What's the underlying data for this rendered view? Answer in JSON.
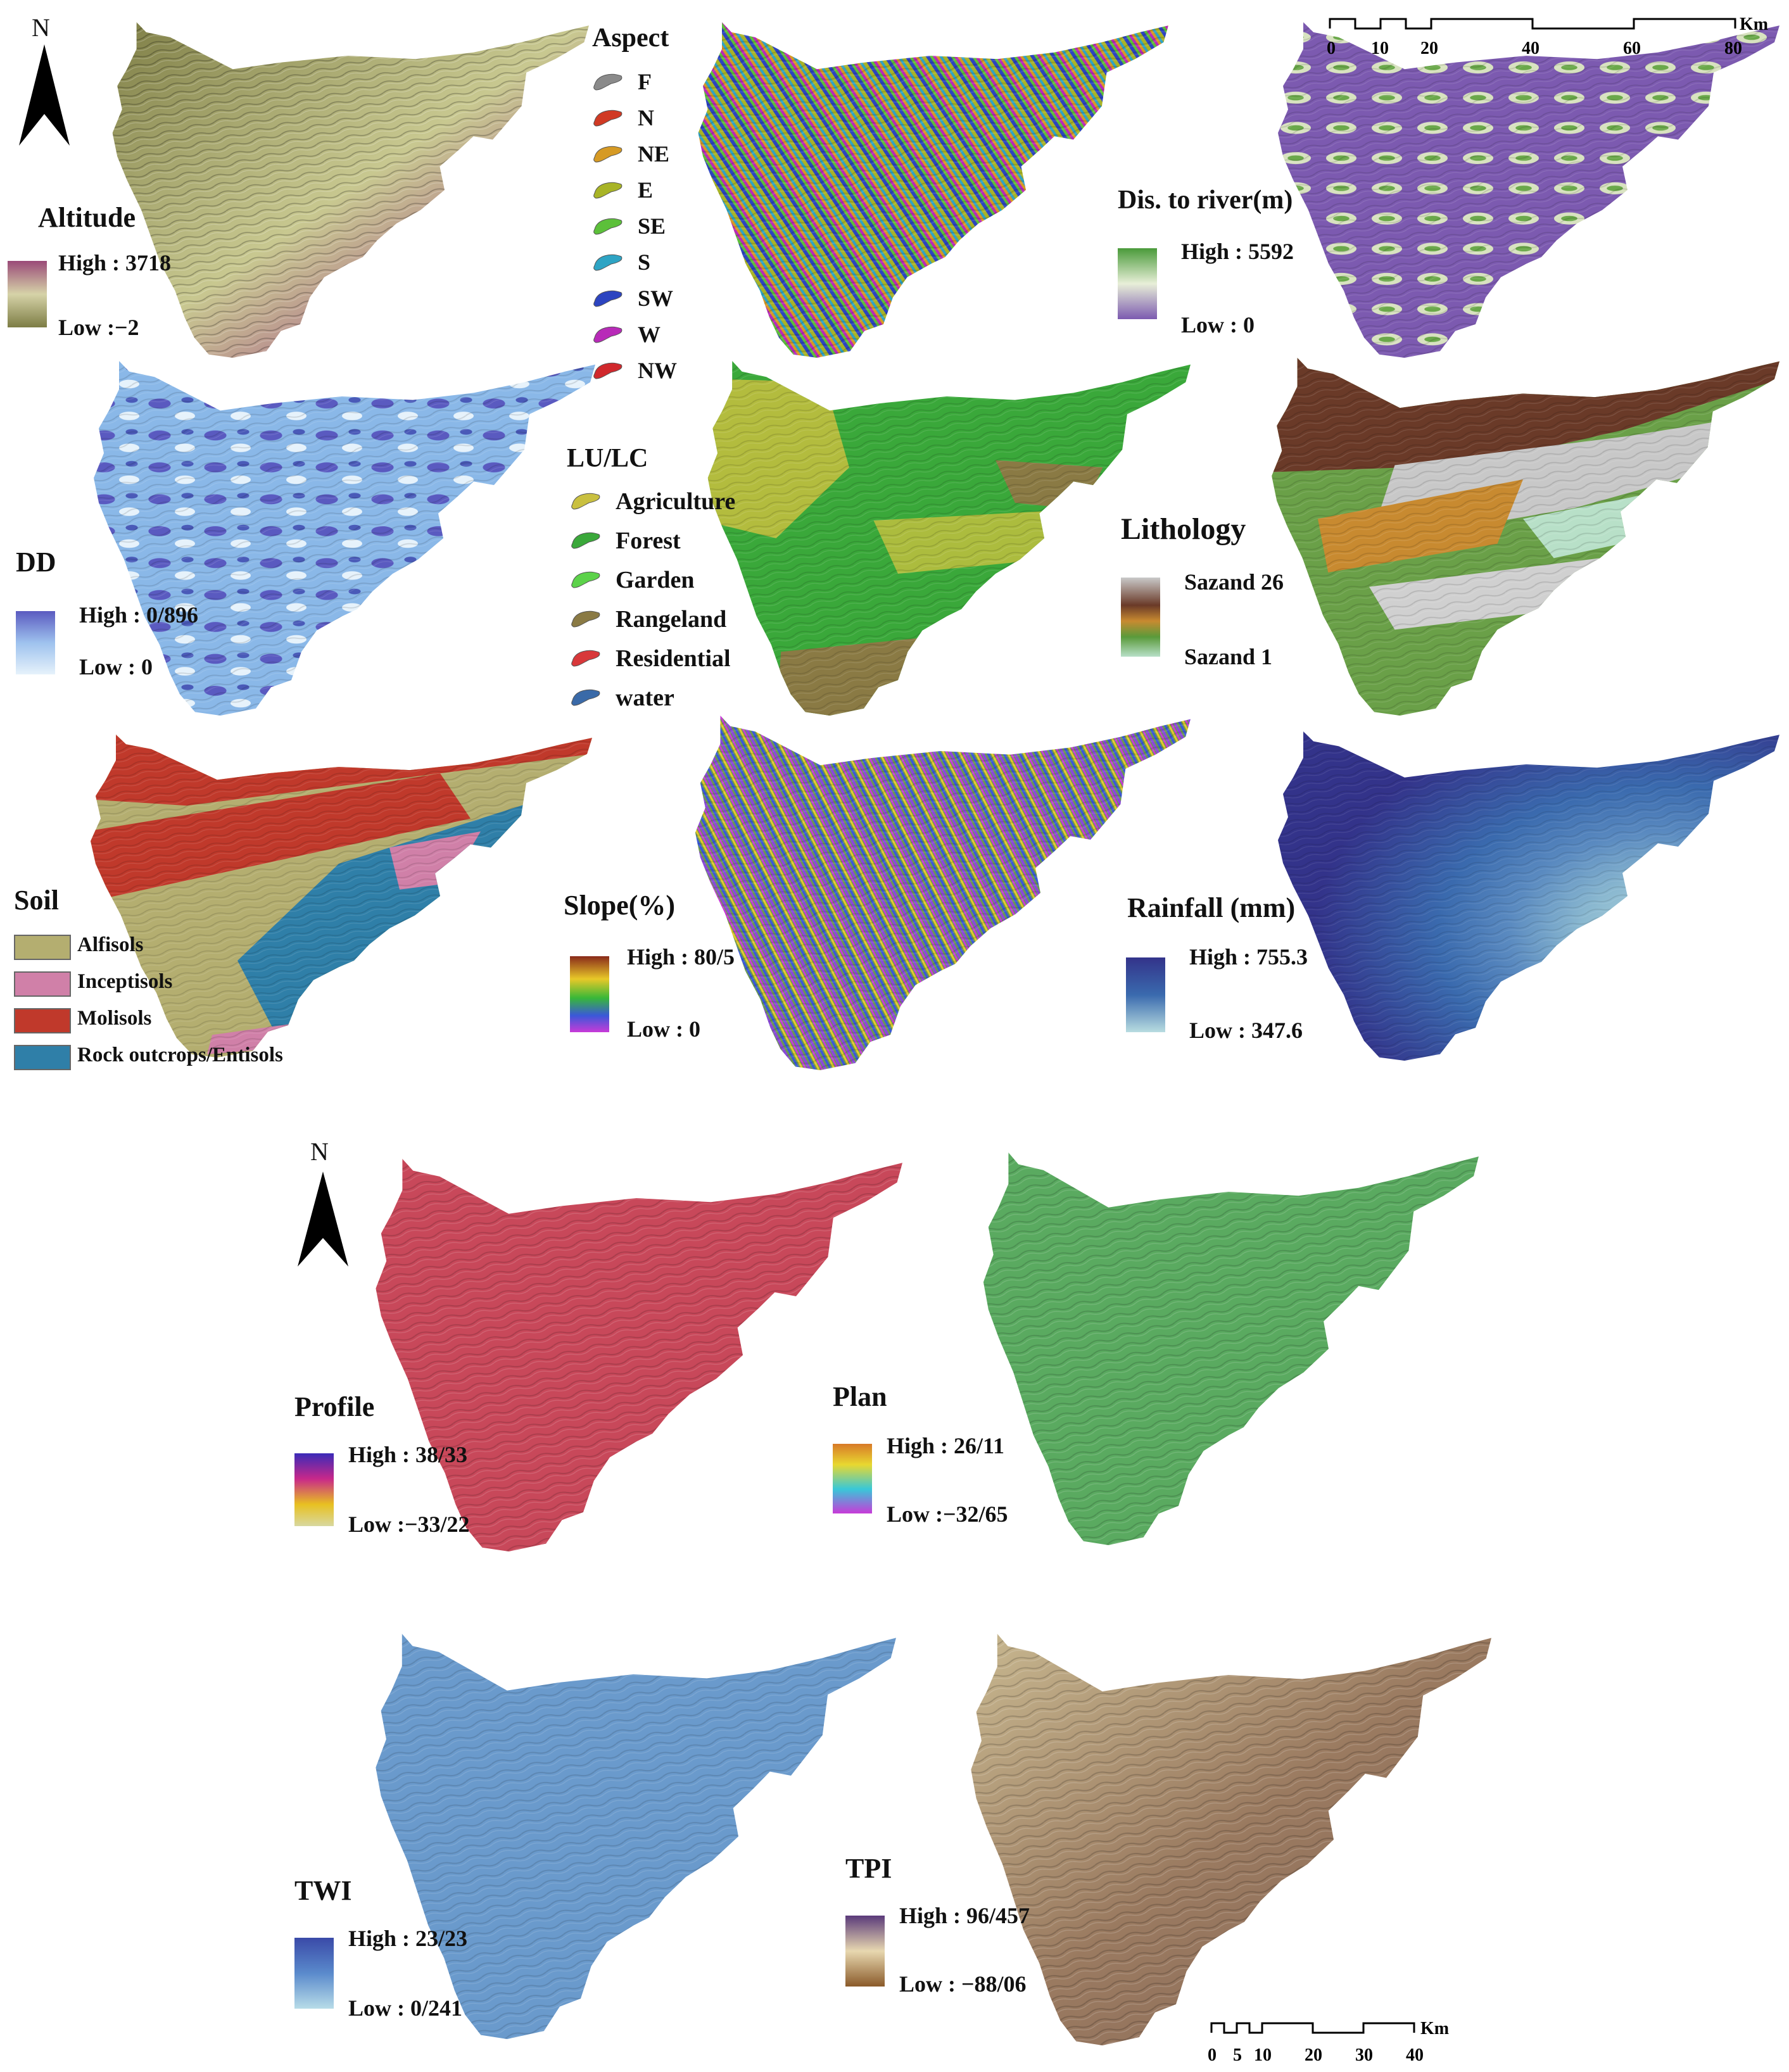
{
  "north_label": "N",
  "scale_top": {
    "ticks": [
      "0",
      "10",
      "20",
      "40",
      "60",
      "80"
    ],
    "unit": "Km"
  },
  "scale_bottom": {
    "ticks": [
      "0",
      "5",
      "10",
      "20",
      "30",
      "40"
    ],
    "unit": "Km"
  },
  "panels": {
    "altitude": {
      "title": "Altitude",
      "high": "High : 3718",
      "low": "Low :−2",
      "colors": [
        "#9a4a78",
        "#d6d3a8",
        "#7d7d45"
      ]
    },
    "aspect": {
      "title": "Aspect",
      "classes": [
        {
          "label": "F",
          "color": "#8a8a8a"
        },
        {
          "label": "N",
          "color": "#d03a24"
        },
        {
          "label": "NE",
          "color": "#d69a24"
        },
        {
          "label": "E",
          "color": "#a8b426"
        },
        {
          "label": "SE",
          "color": "#5cc03a"
        },
        {
          "label": "S",
          "color": "#2ea4c4"
        },
        {
          "label": "SW",
          "color": "#2c44c0"
        },
        {
          "label": "W",
          "color": "#b82ab8"
        },
        {
          "label": "NW",
          "color": "#d0282c"
        }
      ]
    },
    "dist_river": {
      "title": "Dis. to river(m)",
      "high": "High : 5592",
      "low": "Low : 0",
      "colors": [
        "#4a9a3a",
        "#e8efd8",
        "#7c5ab0"
      ]
    },
    "dd": {
      "title": "DD",
      "high": "High : 0/896",
      "low": "Low : 0",
      "colors": [
        "#5a5ac0",
        "#9ec2ee",
        "#e6f2fb"
      ]
    },
    "lulc": {
      "title": "LU/LC",
      "classes": [
        {
          "label": "Agriculture",
          "color": "#c9c040"
        },
        {
          "label": "Forest",
          "color": "#3aa83a"
        },
        {
          "label": "Garden",
          "color": "#5cd24a"
        },
        {
          "label": "Rangeland",
          "color": "#8a7a44"
        },
        {
          "label": "Residential",
          "color": "#d8383a"
        },
        {
          "label": "water",
          "color": "#3a6aa8"
        }
      ]
    },
    "lithology": {
      "title": "Lithology",
      "high": "Sazand 26",
      "low": "Sazand 1",
      "colors": [
        "#c9c9c9",
        "#6a3a28",
        "#c88a30",
        "#5a9a3a",
        "#b8e0c8"
      ]
    },
    "soil": {
      "title": "Soil",
      "classes": [
        {
          "label": "Alfisols",
          "color": "#b4ae70"
        },
        {
          "label": "Inceptisols",
          "color": "#d080a8"
        },
        {
          "label": "Molisols",
          "color": "#c0392b"
        },
        {
          "label": "Rock outcrops/Entisols",
          "color": "#2f7fa8"
        }
      ]
    },
    "slope": {
      "title": "Slope(%)",
      "high": "High : 80/5",
      "low": "Low : 0",
      "colors": [
        "#8a2a1a",
        "#e8c828",
        "#38b838",
        "#3a58d8",
        "#c83ad8"
      ]
    },
    "rainfall": {
      "title": "Rainfall (mm)",
      "high": "High : 755.3",
      "low": "Low : 347.6",
      "colors": [
        "#33338a",
        "#3a6aae",
        "#b8dce0"
      ]
    },
    "profile": {
      "title": "Profile",
      "high": "High : 38/33",
      "low": "Low :−33/22",
      "colors": [
        "#3a2ab8",
        "#c8288a",
        "#e8c020",
        "#d8d8a0"
      ]
    },
    "plan": {
      "title": "Plan",
      "high": "High : 26/11",
      "low": "Low :−32/65",
      "colors": [
        "#d87a28",
        "#e8d830",
        "#38c8d8",
        "#c83ad8"
      ]
    },
    "twi": {
      "title": "TWI",
      "high": "High : 23/23",
      "low": "Low : 0/241",
      "colors": [
        "#3a4aa8",
        "#5a8acc",
        "#b8dce8"
      ]
    },
    "tpi": {
      "title": "TPI",
      "high": "High : 96/457",
      "low": "Low : −88/06",
      "colors": [
        "#5a3a7a",
        "#e8d8b0",
        "#8a5a2a"
      ]
    }
  }
}
